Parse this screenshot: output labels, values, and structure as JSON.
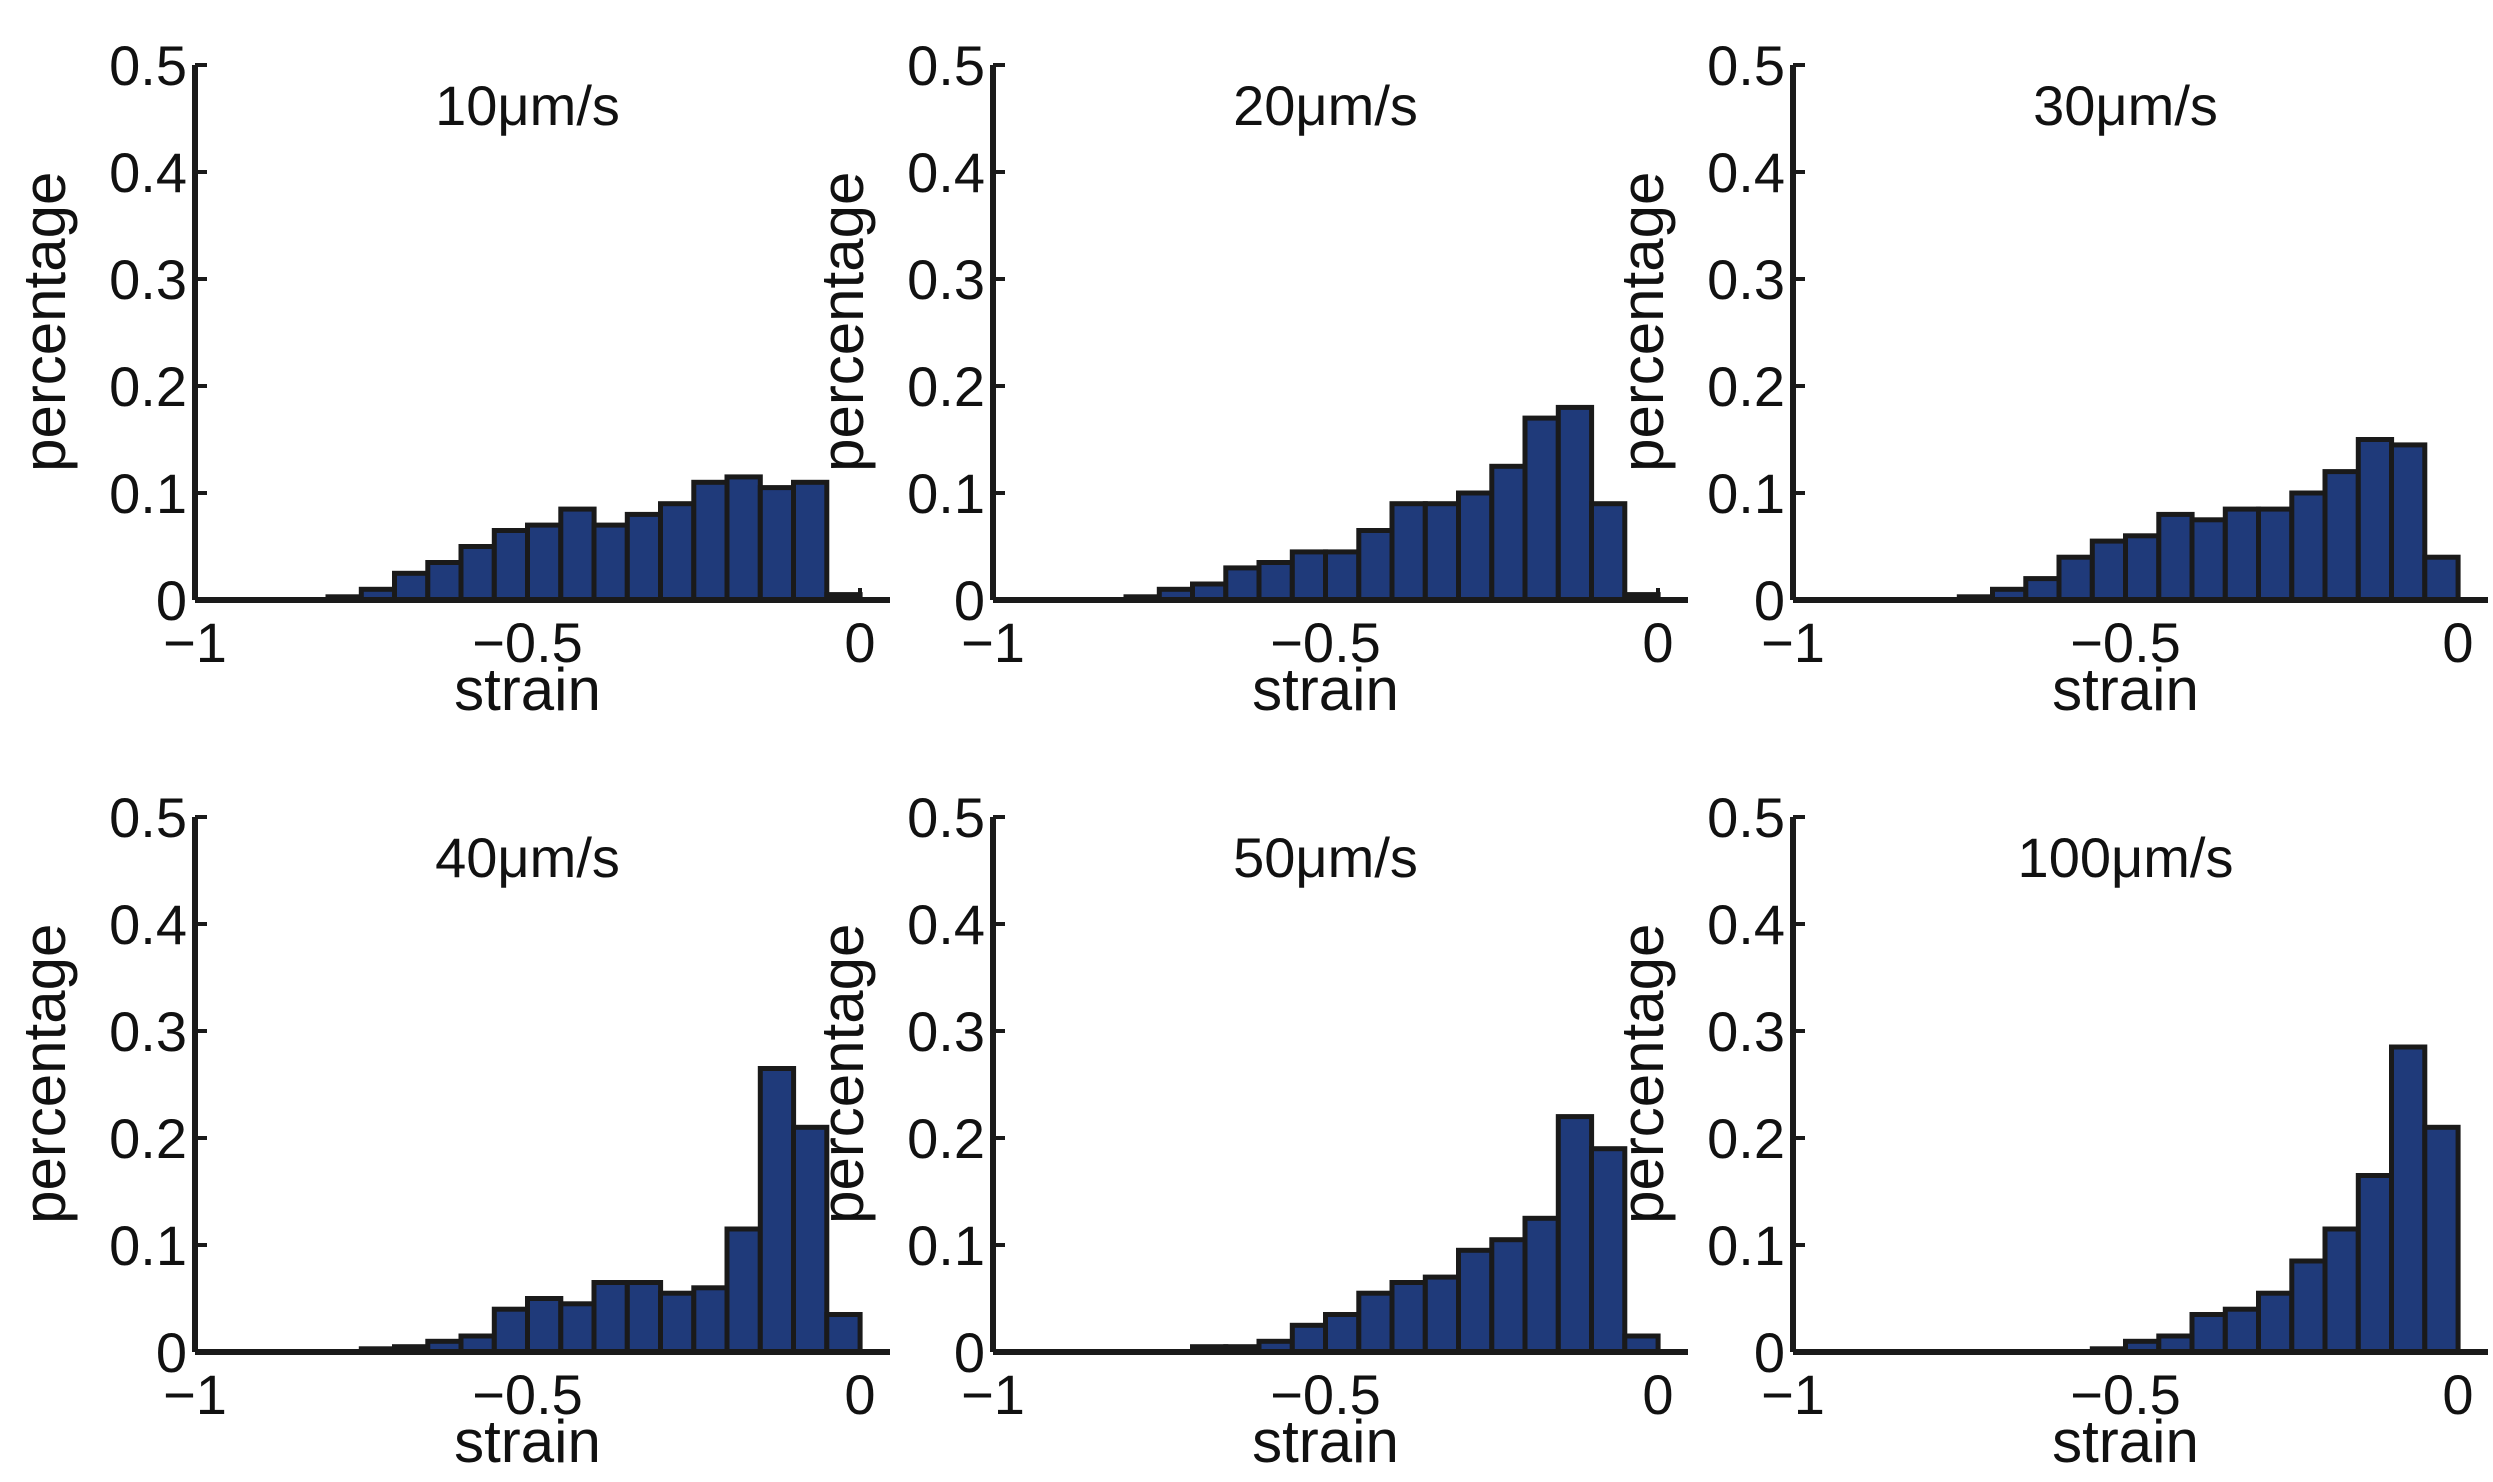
{
  "figure": {
    "bar_fill": "#1f3a7a",
    "bar_stroke": "#1a1a1a",
    "axis_color": "#1a1a1a"
  },
  "chart_data": [
    {
      "type": "bar",
      "title": "10μm/s",
      "xlabel": "strain",
      "ylabel": "percentage",
      "xlim": [
        -1,
        0
      ],
      "ylim": [
        0,
        0.5
      ],
      "xticks": [
        -1,
        -0.5,
        0
      ],
      "xtick_labels": [
        "−1",
        "−0.5",
        "0"
      ],
      "yticks": [
        0,
        0.1,
        0.2,
        0.3,
        0.4,
        0.5
      ],
      "ytick_labels": [
        "0",
        "0.1",
        "0.2",
        "0.3",
        "0.4",
        "0.5"
      ],
      "bin_width": 0.05,
      "bin_centers": [
        -0.975,
        -0.925,
        -0.875,
        -0.825,
        -0.775,
        -0.725,
        -0.675,
        -0.625,
        -0.575,
        -0.525,
        -0.475,
        -0.425,
        -0.375,
        -0.325,
        -0.275,
        -0.225,
        -0.175,
        -0.125,
        -0.075,
        -0.025
      ],
      "values": [
        0,
        0,
        0,
        0,
        0.003,
        0.01,
        0.025,
        0.035,
        0.05,
        0.065,
        0.07,
        0.085,
        0.07,
        0.08,
        0.09,
        0.11,
        0.115,
        0.105,
        0.11,
        0.005
      ]
    },
    {
      "type": "bar",
      "title": "20μm/s",
      "xlabel": "strain",
      "ylabel": "percentage",
      "xlim": [
        -1,
        0
      ],
      "ylim": [
        0,
        0.5
      ],
      "xticks": [
        -1,
        -0.5,
        0
      ],
      "xtick_labels": [
        "−1",
        "−0.5",
        "0"
      ],
      "yticks": [
        0,
        0.1,
        0.2,
        0.3,
        0.4,
        0.5
      ],
      "ytick_labels": [
        "0",
        "0.1",
        "0.2",
        "0.3",
        "0.4",
        "0.5"
      ],
      "bin_width": 0.05,
      "bin_centers": [
        -0.975,
        -0.925,
        -0.875,
        -0.825,
        -0.775,
        -0.725,
        -0.675,
        -0.625,
        -0.575,
        -0.525,
        -0.475,
        -0.425,
        -0.375,
        -0.325,
        -0.275,
        -0.225,
        -0.175,
        -0.125,
        -0.075,
        -0.025
      ],
      "values": [
        0,
        0,
        0,
        0,
        0.003,
        0.01,
        0.015,
        0.03,
        0.035,
        0.045,
        0.045,
        0.065,
        0.09,
        0.09,
        0.1,
        0.125,
        0.17,
        0.18,
        0.09,
        0.005
      ]
    },
    {
      "type": "bar",
      "title": "30μm/s",
      "xlabel": "strain",
      "ylabel": "percentage",
      "xlim": [
        -1,
        0
      ],
      "ylim": [
        0,
        0.5
      ],
      "xticks": [
        -1,
        -0.5,
        0
      ],
      "xtick_labels": [
        "−1",
        "−0.5",
        "0"
      ],
      "yticks": [
        0,
        0.1,
        0.2,
        0.3,
        0.4,
        0.5
      ],
      "ytick_labels": [
        "0",
        "0.1",
        "0.2",
        "0.3",
        "0.4",
        "0.5"
      ],
      "bin_width": 0.05,
      "bin_centers": [
        -0.975,
        -0.925,
        -0.875,
        -0.825,
        -0.775,
        -0.725,
        -0.675,
        -0.625,
        -0.575,
        -0.525,
        -0.475,
        -0.425,
        -0.375,
        -0.325,
        -0.275,
        -0.225,
        -0.175,
        -0.125,
        -0.075,
        -0.025
      ],
      "values": [
        0,
        0,
        0,
        0,
        0,
        0.003,
        0.01,
        0.02,
        0.04,
        0.055,
        0.06,
        0.08,
        0.075,
        0.085,
        0.085,
        0.1,
        0.12,
        0.15,
        0.145,
        0.04
      ]
    },
    {
      "type": "bar",
      "title": "40μm/s",
      "xlabel": "strain",
      "ylabel": "percentage",
      "xlim": [
        -1,
        0
      ],
      "ylim": [
        0,
        0.5
      ],
      "xticks": [
        -1,
        -0.5,
        0
      ],
      "xtick_labels": [
        "−1",
        "−0.5",
        "0"
      ],
      "yticks": [
        0,
        0.1,
        0.2,
        0.3,
        0.4,
        0.5
      ],
      "ytick_labels": [
        "0",
        "0.1",
        "0.2",
        "0.3",
        "0.4",
        "0.5"
      ],
      "bin_width": 0.05,
      "bin_centers": [
        -0.975,
        -0.925,
        -0.875,
        -0.825,
        -0.775,
        -0.725,
        -0.675,
        -0.625,
        -0.575,
        -0.525,
        -0.475,
        -0.425,
        -0.375,
        -0.325,
        -0.275,
        -0.225,
        -0.175,
        -0.125,
        -0.075,
        -0.025
      ],
      "values": [
        0,
        0,
        0,
        0,
        0,
        0.003,
        0.005,
        0.01,
        0.015,
        0.04,
        0.05,
        0.045,
        0.065,
        0.065,
        0.055,
        0.06,
        0.115,
        0.265,
        0.21,
        0.035
      ]
    },
    {
      "type": "bar",
      "title": "50μm/s",
      "xlabel": "strain",
      "ylabel": "percentage",
      "xlim": [
        -1,
        0
      ],
      "ylim": [
        0,
        0.5
      ],
      "xticks": [
        -1,
        -0.5,
        0
      ],
      "xtick_labels": [
        "−1",
        "−0.5",
        "0"
      ],
      "yticks": [
        0,
        0.1,
        0.2,
        0.3,
        0.4,
        0.5
      ],
      "ytick_labels": [
        "0",
        "0.1",
        "0.2",
        "0.3",
        "0.4",
        "0.5"
      ],
      "bin_width": 0.05,
      "bin_centers": [
        -0.975,
        -0.925,
        -0.875,
        -0.825,
        -0.775,
        -0.725,
        -0.675,
        -0.625,
        -0.575,
        -0.525,
        -0.475,
        -0.425,
        -0.375,
        -0.325,
        -0.275,
        -0.225,
        -0.175,
        -0.125,
        -0.075,
        -0.025
      ],
      "values": [
        0,
        0,
        0,
        0,
        0,
        0,
        0.005,
        0.005,
        0.01,
        0.025,
        0.035,
        0.055,
        0.065,
        0.07,
        0.095,
        0.105,
        0.125,
        0.22,
        0.19,
        0.015
      ]
    },
    {
      "type": "bar",
      "title": "100μm/s",
      "xlabel": "strain",
      "ylabel": "percentage",
      "xlim": [
        -1,
        0
      ],
      "ylim": [
        0,
        0.5
      ],
      "xticks": [
        -1,
        -0.5,
        0
      ],
      "xtick_labels": [
        "−1",
        "−0.5",
        "0"
      ],
      "yticks": [
        0,
        0.1,
        0.2,
        0.3,
        0.4,
        0.5
      ],
      "ytick_labels": [
        "0",
        "0.1",
        "0.2",
        "0.3",
        "0.4",
        "0.5"
      ],
      "bin_width": 0.05,
      "bin_centers": [
        -0.975,
        -0.925,
        -0.875,
        -0.825,
        -0.775,
        -0.725,
        -0.675,
        -0.625,
        -0.575,
        -0.525,
        -0.475,
        -0.425,
        -0.375,
        -0.325,
        -0.275,
        -0.225,
        -0.175,
        -0.125,
        -0.075,
        -0.025
      ],
      "values": [
        0,
        0,
        0,
        0,
        0,
        0,
        0,
        0,
        0,
        0.003,
        0.01,
        0.015,
        0.035,
        0.04,
        0.055,
        0.085,
        0.115,
        0.165,
        0.285,
        0.21
      ]
    }
  ]
}
